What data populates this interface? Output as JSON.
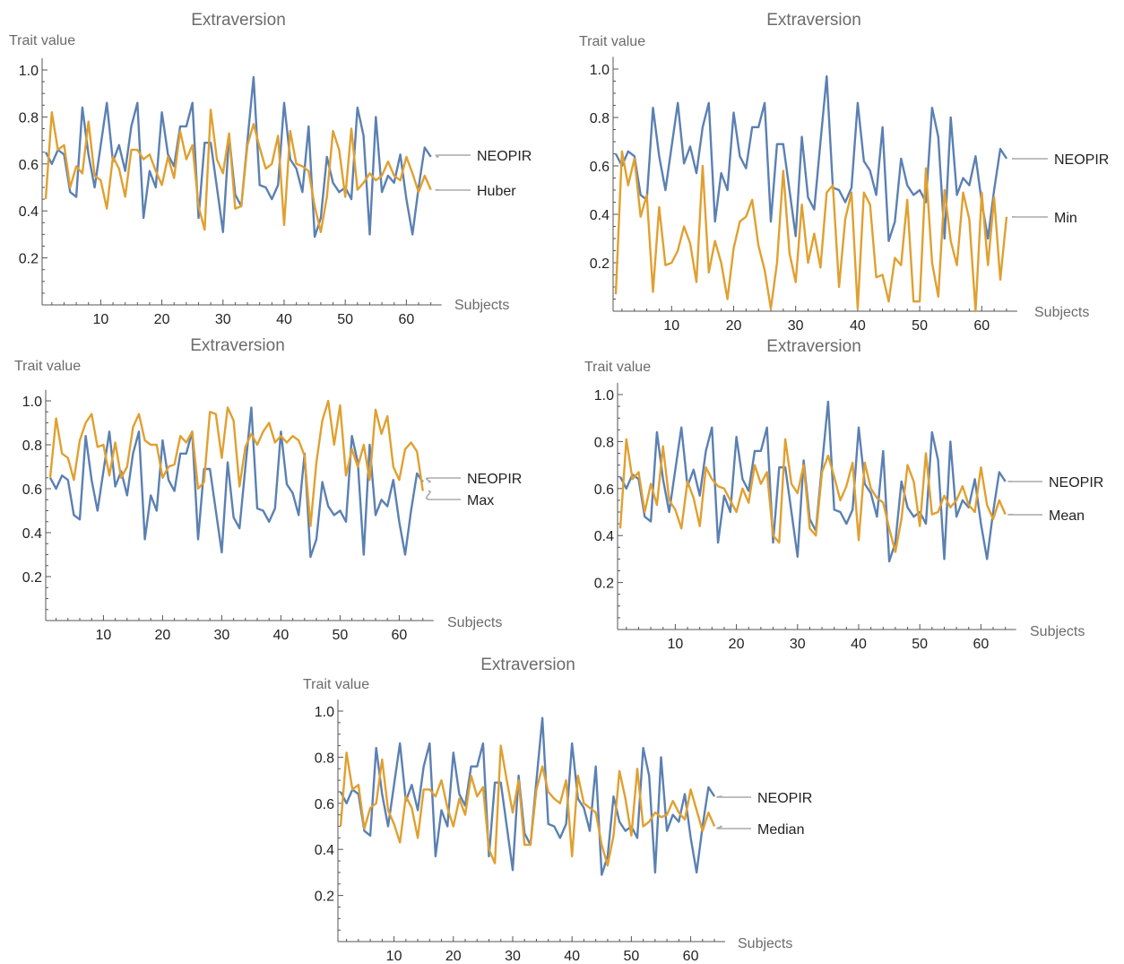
{
  "colors": {
    "neopir": "#5b80b2",
    "estimator": "#e0a030",
    "axis": "#555555",
    "legend_leader": "#aaaaaa"
  },
  "shared_neopir": [
    0.65,
    0.6,
    0.66,
    0.64,
    0.48,
    0.46,
    0.84,
    0.64,
    0.5,
    0.68,
    0.86,
    0.61,
    0.68,
    0.57,
    0.76,
    0.86,
    0.37,
    0.57,
    0.5,
    0.82,
    0.64,
    0.59,
    0.76,
    0.76,
    0.86,
    0.37,
    0.69,
    0.69,
    0.5,
    0.31,
    0.72,
    0.47,
    0.42,
    0.7,
    0.97,
    0.51,
    0.5,
    0.45,
    0.51,
    0.86,
    0.62,
    0.58,
    0.48,
    0.76,
    0.29,
    0.37,
    0.63,
    0.52,
    0.48,
    0.5,
    0.45,
    0.84,
    0.72,
    0.3,
    0.8,
    0.48,
    0.55,
    0.52,
    0.64,
    0.45,
    0.3,
    0.5,
    0.67,
    0.63
  ],
  "chart_data": [
    {
      "type": "line",
      "title": "Extraversion",
      "ylabel": "Trait value",
      "xlabel": "Subjects",
      "xlim": [
        0,
        64
      ],
      "ylim": [
        0,
        1.0
      ],
      "xticks": [
        10,
        20,
        30,
        40,
        50,
        60
      ],
      "xtick_labels": [
        "10",
        "20",
        "30",
        "40",
        "50",
        "60"
      ],
      "yticks": [
        0.2,
        0.4,
        0.6,
        0.8,
        1.0
      ],
      "ytick_labels": [
        "0.2",
        "0.4",
        "0.6",
        "0.8",
        "1.0"
      ],
      "legend_labels": [
        "NEOPIR",
        "Huber"
      ],
      "series": [
        {
          "name": "NEOPIR",
          "values": "shared_neopir"
        },
        {
          "name": "Huber",
          "values": [
            0.45,
            0.82,
            0.66,
            0.68,
            0.5,
            0.59,
            0.56,
            0.78,
            0.55,
            0.53,
            0.41,
            0.63,
            0.58,
            0.46,
            0.66,
            0.66,
            0.62,
            0.64,
            0.57,
            0.51,
            0.63,
            0.54,
            0.74,
            0.62,
            0.68,
            0.42,
            0.32,
            0.83,
            0.62,
            0.56,
            0.73,
            0.41,
            0.42,
            0.68,
            0.77,
            0.67,
            0.58,
            0.6,
            0.72,
            0.34,
            0.74,
            0.6,
            0.59,
            0.57,
            0.42,
            0.31,
            0.46,
            0.74,
            0.66,
            0.46,
            0.75,
            0.49,
            0.52,
            0.56,
            0.53,
            0.55,
            0.61,
            0.55,
            0.53,
            0.63,
            0.56,
            0.48,
            0.55,
            0.49
          ]
        }
      ]
    },
    {
      "type": "line",
      "title": "Extraversion",
      "ylabel": "Trait value",
      "xlabel": "Subjects",
      "xlim": [
        0,
        64
      ],
      "ylim": [
        0,
        1.0
      ],
      "xticks": [
        10,
        20,
        30,
        40,
        50,
        60
      ],
      "xtick_labels": [
        "10",
        "20",
        "30",
        "40",
        "50",
        "60"
      ],
      "yticks": [
        0.2,
        0.4,
        0.6,
        0.8,
        1.0
      ],
      "ytick_labels": [
        "0.2",
        "0.4",
        "0.6",
        "0.8",
        "1.0"
      ],
      "legend_labels": [
        "NEOPIR",
        "Min"
      ],
      "series": [
        {
          "name": "NEOPIR",
          "values": "shared_neopir"
        },
        {
          "name": "Min",
          "values": [
            0.07,
            0.66,
            0.52,
            0.63,
            0.39,
            0.48,
            0.08,
            0.43,
            0.19,
            0.2,
            0.25,
            0.35,
            0.28,
            0.12,
            0.6,
            0.16,
            0.29,
            0.2,
            0.05,
            0.26,
            0.37,
            0.39,
            0.46,
            0.27,
            0.17,
            0.01,
            0.2,
            0.58,
            0.24,
            0.12,
            0.44,
            0.2,
            0.32,
            0.18,
            0.49,
            0.52,
            0.1,
            0.38,
            0.49,
            0.01,
            0.49,
            0.44,
            0.14,
            0.15,
            0.04,
            0.22,
            0.19,
            0.46,
            0.04,
            0.04,
            0.59,
            0.2,
            0.06,
            0.5,
            0.29,
            0.19,
            0.49,
            0.38,
            0.0,
            0.49,
            0.19,
            0.47,
            0.13,
            0.39
          ]
        }
      ]
    },
    {
      "type": "line",
      "title": "Extraversion",
      "ylabel": "Trait value",
      "xlabel": "Subjects",
      "xlim": [
        0,
        64
      ],
      "ylim": [
        0,
        1.0
      ],
      "xticks": [
        10,
        20,
        30,
        40,
        50,
        60
      ],
      "xtick_labels": [
        "10",
        "20",
        "30",
        "40",
        "50",
        "60"
      ],
      "yticks": [
        0.2,
        0.4,
        0.6,
        0.8,
        1.0
      ],
      "ytick_labels": [
        "0.2",
        "0.4",
        "0.6",
        "0.8",
        "1.0"
      ],
      "legend_labels": [
        "NEOPIR",
        "Max"
      ],
      "series": [
        {
          "name": "NEOPIR",
          "values": "shared_neopir"
        },
        {
          "name": "Max",
          "values": [
            0.65,
            0.92,
            0.76,
            0.74,
            0.64,
            0.82,
            0.9,
            0.94,
            0.79,
            0.8,
            0.66,
            0.81,
            0.65,
            0.7,
            0.88,
            0.94,
            0.82,
            0.8,
            0.8,
            0.65,
            0.7,
            0.71,
            0.84,
            0.81,
            0.86,
            0.6,
            0.63,
            0.95,
            0.94,
            0.74,
            0.97,
            0.91,
            0.61,
            0.79,
            0.85,
            0.8,
            0.86,
            0.9,
            0.81,
            0.84,
            0.81,
            0.84,
            0.82,
            0.75,
            0.43,
            0.72,
            0.91,
            1.0,
            0.8,
            0.98,
            0.66,
            0.78,
            0.7,
            0.8,
            0.64,
            0.96,
            0.85,
            0.93,
            0.7,
            0.64,
            0.78,
            0.81,
            0.77,
            0.59
          ]
        }
      ]
    },
    {
      "type": "line",
      "title": "Extraversion",
      "ylabel": "Trait value",
      "xlabel": "Subjects",
      "xlim": [
        0,
        64
      ],
      "ylim": [
        0,
        1.0
      ],
      "xticks": [
        10,
        20,
        30,
        40,
        50,
        60
      ],
      "xtick_labels": [
        "10",
        "20",
        "30",
        "40",
        "50",
        "60"
      ],
      "yticks": [
        0.2,
        0.4,
        0.6,
        0.8,
        1.0
      ],
      "ytick_labels": [
        "0.2",
        "0.4",
        "0.6",
        "0.8",
        "1.0"
      ],
      "legend_labels": [
        "NEOPIR",
        "Mean"
      ],
      "series": [
        {
          "name": "NEOPIR",
          "values": "shared_neopir"
        },
        {
          "name": "Mean",
          "values": [
            0.43,
            0.81,
            0.64,
            0.67,
            0.5,
            0.62,
            0.53,
            0.78,
            0.55,
            0.51,
            0.43,
            0.63,
            0.56,
            0.44,
            0.69,
            0.64,
            0.61,
            0.6,
            0.55,
            0.5,
            0.6,
            0.54,
            0.7,
            0.62,
            0.67,
            0.4,
            0.37,
            0.81,
            0.62,
            0.58,
            0.7,
            0.43,
            0.4,
            0.67,
            0.74,
            0.65,
            0.55,
            0.61,
            0.71,
            0.38,
            0.71,
            0.6,
            0.56,
            0.54,
            0.43,
            0.33,
            0.47,
            0.7,
            0.63,
            0.44,
            0.75,
            0.49,
            0.5,
            0.57,
            0.52,
            0.55,
            0.61,
            0.53,
            0.5,
            0.69,
            0.53,
            0.47,
            0.55,
            0.49
          ]
        }
      ]
    },
    {
      "type": "line",
      "title": "Extraversion",
      "ylabel": "Trait value",
      "xlabel": "Subjects",
      "xlim": [
        0,
        64
      ],
      "ylim": [
        0,
        1.0
      ],
      "xticks": [
        10,
        20,
        30,
        40,
        50,
        60
      ],
      "xtick_labels": [
        "10",
        "20",
        "30",
        "40",
        "50",
        "60"
      ],
      "yticks": [
        0.2,
        0.4,
        0.6,
        0.8,
        1.0
      ],
      "ytick_labels": [
        "0.2",
        "0.4",
        "0.6",
        "0.8",
        "1.0"
      ],
      "legend_labels": [
        "NEOPIR",
        "Median"
      ],
      "series": [
        {
          "name": "NEOPIR",
          "values": "shared_neopir"
        },
        {
          "name": "Median",
          "values": [
            0.5,
            0.82,
            0.66,
            0.68,
            0.49,
            0.58,
            0.6,
            0.79,
            0.57,
            0.51,
            0.43,
            0.63,
            0.58,
            0.45,
            0.66,
            0.66,
            0.63,
            0.7,
            0.58,
            0.5,
            0.62,
            0.55,
            0.72,
            0.63,
            0.67,
            0.4,
            0.34,
            0.85,
            0.7,
            0.56,
            0.7,
            0.42,
            0.42,
            0.66,
            0.76,
            0.65,
            0.62,
            0.6,
            0.7,
            0.37,
            0.72,
            0.6,
            0.58,
            0.56,
            0.42,
            0.33,
            0.46,
            0.74,
            0.62,
            0.46,
            0.75,
            0.5,
            0.52,
            0.56,
            0.54,
            0.55,
            0.61,
            0.56,
            0.53,
            0.66,
            0.57,
            0.48,
            0.56,
            0.5
          ]
        }
      ]
    }
  ]
}
